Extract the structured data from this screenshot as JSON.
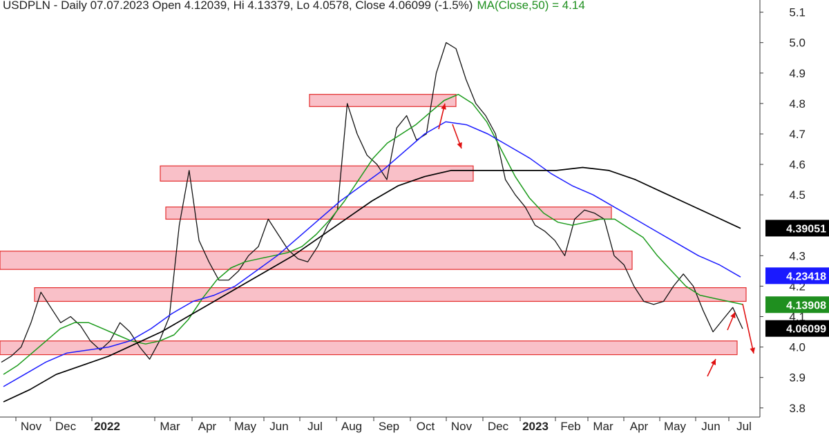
{
  "chart_data": {
    "type": "line",
    "title": "USDPLN - Daily 07.07.2023 Open 4.12039, Hi 4.13379, Lo 4.0578, Close 4.06099 (-1.5%)",
    "ma_label": "MA(Close,50) = 4.14",
    "x_ticks": [
      "Nov",
      "Dec",
      "2022",
      "Mar",
      "Apr",
      "May",
      "Jun",
      "Jul",
      "Aug",
      "Sep",
      "Oct",
      "Nov",
      "Dec",
      "2023",
      "Feb",
      "Mar",
      "Apr",
      "May",
      "Jun",
      "Jul"
    ],
    "y_ticks": [
      "5.1",
      "5.0",
      "4.9",
      "4.8",
      "4.7",
      "4.6",
      "4.5",
      "4.3",
      "4.2",
      "4.1",
      "4.0",
      "3.9",
      "3.8"
    ],
    "ylim": [
      3.77,
      5.14
    ],
    "badges": [
      {
        "label": "4.39051",
        "value": 4.39051,
        "color": "#000000"
      },
      {
        "label": "4.23418",
        "value": 4.23418,
        "color": "#1a1aff"
      },
      {
        "label": "4.13908",
        "value": 4.13908,
        "color": "#1f8f1f"
      },
      {
        "label": "4.06099",
        "value": 4.06099,
        "color": "#000000"
      }
    ],
    "zones": [
      {
        "low": 4.79,
        "high": 4.83
      },
      {
        "low": 4.545,
        "high": 4.595
      },
      {
        "low": 4.42,
        "high": 4.46
      },
      {
        "low": 4.255,
        "high": 4.315
      },
      {
        "low": 4.15,
        "high": 4.195
      },
      {
        "low": 3.975,
        "high": 4.02
      }
    ],
    "series": [
      {
        "values": [
          3.95,
          3.97,
          4.0,
          4.08,
          4.18,
          4.13,
          4.08,
          4.1,
          4.07,
          4.02,
          3.99,
          4.02,
          4.08,
          4.05,
          4.0,
          3.96,
          4.02,
          4.1,
          4.4,
          4.58,
          4.35,
          4.28,
          4.22,
          4.22,
          4.25,
          4.3,
          4.33,
          4.42,
          4.37,
          4.32,
          4.29,
          4.28,
          4.33,
          4.4,
          4.45,
          4.8,
          4.7,
          4.63,
          4.6,
          4.55,
          4.72,
          4.76,
          4.68,
          4.7,
          4.9,
          5.0,
          4.98,
          4.88,
          4.8,
          4.76,
          4.7,
          4.55,
          4.5,
          4.46,
          4.4,
          4.38,
          4.35,
          4.3,
          4.42,
          4.45,
          4.44,
          4.42,
          4.3,
          4.27,
          4.2,
          4.15,
          4.14,
          4.15,
          4.2,
          4.24,
          4.2,
          4.12,
          4.05,
          4.09,
          4.13,
          4.06
        ]
      },
      {
        "values": [
          3.91,
          3.94,
          3.98,
          4.02,
          4.06,
          4.08,
          4.08,
          4.06,
          4.04,
          4.02,
          4.01,
          4.02,
          4.04,
          4.09,
          4.16,
          4.22,
          4.26,
          4.28,
          4.29,
          4.3,
          4.31,
          4.33,
          4.37,
          4.42,
          4.48,
          4.55,
          4.62,
          4.67,
          4.7,
          4.73,
          4.77,
          4.81,
          4.83,
          4.8,
          4.74,
          4.65,
          4.56,
          4.49,
          4.44,
          4.41,
          4.4,
          4.41,
          4.42,
          4.42,
          4.39,
          4.36,
          4.3,
          4.25,
          4.2,
          4.17,
          4.16,
          4.15,
          4.14
        ]
      },
      {
        "values": [
          3.87,
          3.91,
          3.95,
          3.98,
          3.99,
          4.0,
          4.02,
          4.06,
          4.11,
          4.15,
          4.17,
          4.2,
          4.25,
          4.3,
          4.36,
          4.42,
          4.48,
          4.53,
          4.58,
          4.64,
          4.7,
          4.74,
          4.73,
          4.7,
          4.66,
          4.62,
          4.57,
          4.53,
          4.5,
          4.46,
          4.42,
          4.38,
          4.34,
          4.3,
          4.27,
          4.23
        ]
      },
      {
        "values": [
          3.82,
          3.86,
          3.91,
          3.94,
          3.97,
          4.01,
          4.05,
          4.1,
          4.15,
          4.2,
          4.25,
          4.3,
          4.36,
          4.42,
          4.48,
          4.53,
          4.56,
          4.58,
          4.58,
          4.58,
          4.58,
          4.58,
          4.59,
          4.58,
          4.55,
          4.51,
          4.47,
          4.43,
          4.39
        ]
      }
    ]
  }
}
